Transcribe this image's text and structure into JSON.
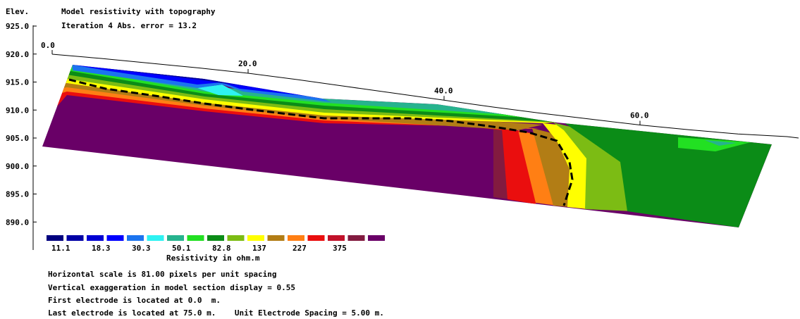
{
  "header": {
    "elev_label": "Elev.",
    "title": "Model resistivity with topography",
    "subtitle": "Iteration 4 Abs. error = 13.2"
  },
  "chart_data": {
    "type": "heatmap",
    "title": "Model resistivity with topography",
    "subtitle": "Iteration 4 Abs. error = 13.2",
    "ylabel": "Elev.",
    "y_ticks": [
      "925.0",
      "920.0",
      "915.0",
      "910.0",
      "905.0",
      "900.0",
      "895.0",
      "890.0"
    ],
    "y_tick_values": [
      925,
      920,
      915,
      910,
      905,
      900,
      895,
      890
    ],
    "ylim": [
      887,
      926
    ],
    "x_ticks": [
      "0.0",
      "20.0",
      "40.0",
      "60.0"
    ],
    "x_tick_values": [
      0,
      20,
      40,
      60
    ],
    "xlim": [
      -1,
      77
    ],
    "topography": {
      "x": [
        0,
        5,
        10,
        15,
        20,
        25,
        30,
        35,
        40,
        45,
        50,
        55,
        60,
        65,
        70,
        75
      ],
      "elev": [
        920.0,
        919.2,
        918.3,
        917.4,
        916.4,
        915.2,
        913.9,
        912.6,
        911.3,
        910.0,
        908.8,
        907.7,
        906.6,
        905.7,
        904.9,
        904.4
      ]
    },
    "colorbar": {
      "colors": [
        "#00007f",
        "#0000a5",
        "#0000d3",
        "#0000ff",
        "#1b74ef",
        "#2ef2f2",
        "#26b38e",
        "#22e022",
        "#0b8c17",
        "#7cbc14",
        "#ffff00",
        "#b27d15",
        "#ff7f14",
        "#ea0e0e",
        "#c1122a",
        "#821b40",
        "#690067"
      ],
      "labels": [
        "11.1",
        "18.3",
        "30.3",
        "50.1",
        "82.8",
        "137",
        "227",
        "375"
      ],
      "title": "Resistivity in ohm.m"
    },
    "grid": false
  },
  "footer": {
    "line1": "Horizontal scale is 81.00 pixels per unit spacing",
    "line2": "Vertical exaggeration in model section display = 0.55",
    "line3": "First electrode is located at 0.0  m.",
    "line4": "Last electrode is located at 75.0 m.    Unit Electrode Spacing = 5.00 m."
  }
}
